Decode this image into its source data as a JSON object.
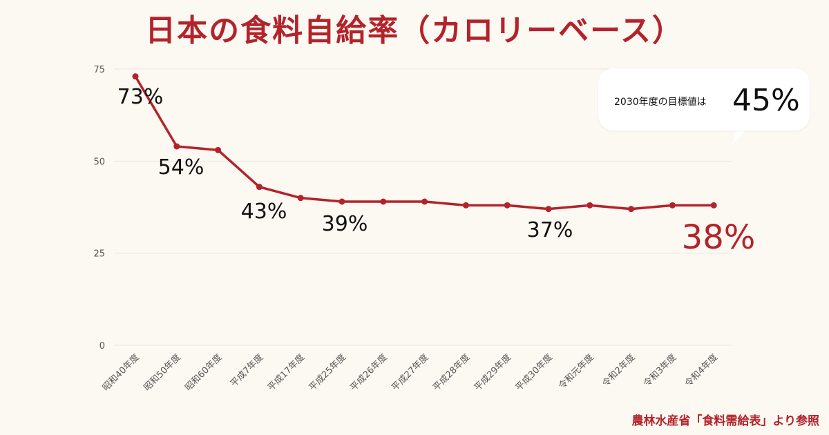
{
  "title": "日本の食料自給率（カロリーベース）",
  "source": "農林水産省「食料需給表」より参照",
  "callout": {
    "text": "2030年度の目標値は",
    "value": "45%"
  },
  "colors": {
    "accent": "#b3232b",
    "background": "#fcf8f2",
    "grid": "#ece6dd"
  },
  "chart_data": {
    "type": "line",
    "title": "日本の食料自給率（カロリーベース）",
    "xlabel": "",
    "ylabel": "",
    "ylim": [
      0,
      75
    ],
    "yticks": [
      0,
      25,
      50,
      75
    ],
    "grid": true,
    "categories": [
      "昭和40年度",
      "昭和50年度",
      "昭和60年度",
      "平成7年度",
      "平成17年度",
      "平成25年度",
      "平成26年度",
      "平成27年度",
      "平成28年度",
      "平成29年度",
      "平成30年度",
      "令和元年度",
      "令和2年度",
      "令和3年度",
      "令和4年度"
    ],
    "values": [
      73,
      54,
      53,
      43,
      40,
      39,
      39,
      39,
      38,
      38,
      37,
      38,
      37,
      38,
      38
    ],
    "annotations": [
      {
        "index": 0,
        "text": "73%"
      },
      {
        "index": 1,
        "text": "54%"
      },
      {
        "index": 3,
        "text": "43%"
      },
      {
        "index": 5,
        "text": "39%"
      },
      {
        "index": 10,
        "text": "37%"
      },
      {
        "index": 14,
        "text": "38%"
      }
    ]
  }
}
